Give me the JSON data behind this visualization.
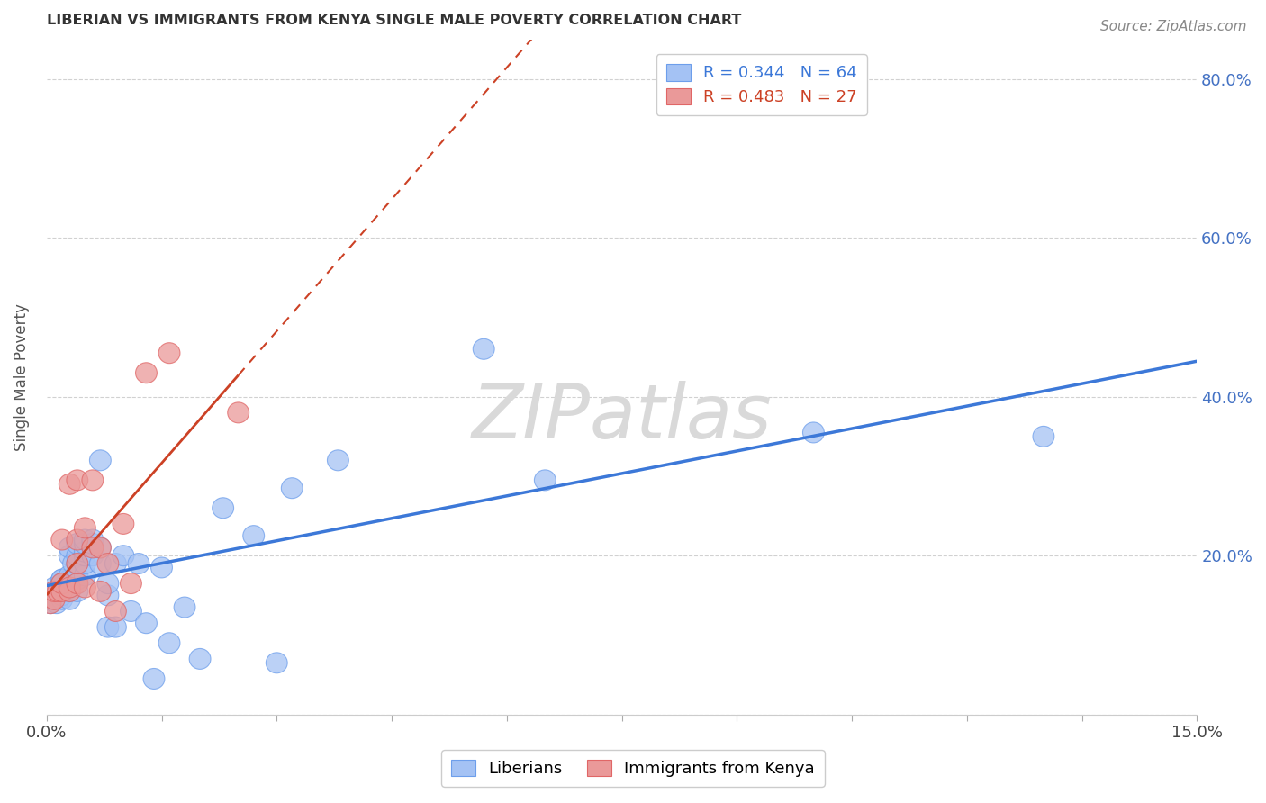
{
  "title": "LIBERIAN VS IMMIGRANTS FROM KENYA SINGLE MALE POVERTY CORRELATION CHART",
  "source": "Source: ZipAtlas.com",
  "ylabel_label": "Single Male Poverty",
  "legend_label_1": "Liberians",
  "legend_label_2": "Immigrants from Kenya",
  "R1": 0.344,
  "N1": 64,
  "R2": 0.483,
  "N2": 27,
  "color_blue": "#a4c2f4",
  "color_blue_edge": "#6d9eeb",
  "color_pink": "#ea9999",
  "color_pink_edge": "#e06666",
  "color_line_blue": "#3c78d8",
  "color_line_pink": "#cc4125",
  "background_color": "#ffffff",
  "grid_color": "#cccccc",
  "watermark": "ZIPatlas",
  "xlim": [
    0.0,
    0.15
  ],
  "ylim": [
    0.0,
    0.85
  ],
  "blue_x": [
    0.0005,
    0.001,
    0.001,
    0.0013,
    0.0015,
    0.0015,
    0.002,
    0.002,
    0.002,
    0.002,
    0.002,
    0.002,
    0.002,
    0.003,
    0.003,
    0.003,
    0.003,
    0.003,
    0.003,
    0.003,
    0.003,
    0.0035,
    0.004,
    0.004,
    0.004,
    0.004,
    0.004,
    0.004,
    0.004,
    0.005,
    0.005,
    0.005,
    0.005,
    0.005,
    0.005,
    0.006,
    0.006,
    0.006,
    0.007,
    0.007,
    0.007,
    0.008,
    0.008,
    0.008,
    0.009,
    0.009,
    0.01,
    0.011,
    0.012,
    0.013,
    0.014,
    0.015,
    0.016,
    0.018,
    0.02,
    0.023,
    0.027,
    0.03,
    0.032,
    0.038,
    0.057,
    0.065,
    0.1,
    0.13
  ],
  "blue_y": [
    0.14,
    0.155,
    0.16,
    0.14,
    0.155,
    0.155,
    0.145,
    0.15,
    0.155,
    0.16,
    0.17,
    0.17,
    0.165,
    0.145,
    0.155,
    0.16,
    0.165,
    0.17,
    0.175,
    0.2,
    0.21,
    0.19,
    0.155,
    0.165,
    0.17,
    0.175,
    0.19,
    0.2,
    0.215,
    0.175,
    0.19,
    0.2,
    0.205,
    0.215,
    0.22,
    0.2,
    0.215,
    0.22,
    0.19,
    0.21,
    0.32,
    0.11,
    0.15,
    0.165,
    0.19,
    0.11,
    0.2,
    0.13,
    0.19,
    0.115,
    0.045,
    0.185,
    0.09,
    0.135,
    0.07,
    0.26,
    0.225,
    0.065,
    0.285,
    0.32,
    0.46,
    0.295,
    0.355,
    0.35
  ],
  "pink_x": [
    0.0005,
    0.001,
    0.001,
    0.0015,
    0.002,
    0.002,
    0.002,
    0.003,
    0.003,
    0.003,
    0.004,
    0.004,
    0.004,
    0.004,
    0.005,
    0.005,
    0.006,
    0.006,
    0.007,
    0.007,
    0.008,
    0.009,
    0.01,
    0.011,
    0.013,
    0.016,
    0.025
  ],
  "pink_y": [
    0.14,
    0.145,
    0.155,
    0.155,
    0.155,
    0.165,
    0.22,
    0.155,
    0.16,
    0.29,
    0.165,
    0.19,
    0.22,
    0.295,
    0.16,
    0.235,
    0.21,
    0.295,
    0.21,
    0.155,
    0.19,
    0.13,
    0.24,
    0.165,
    0.43,
    0.455,
    0.38
  ]
}
